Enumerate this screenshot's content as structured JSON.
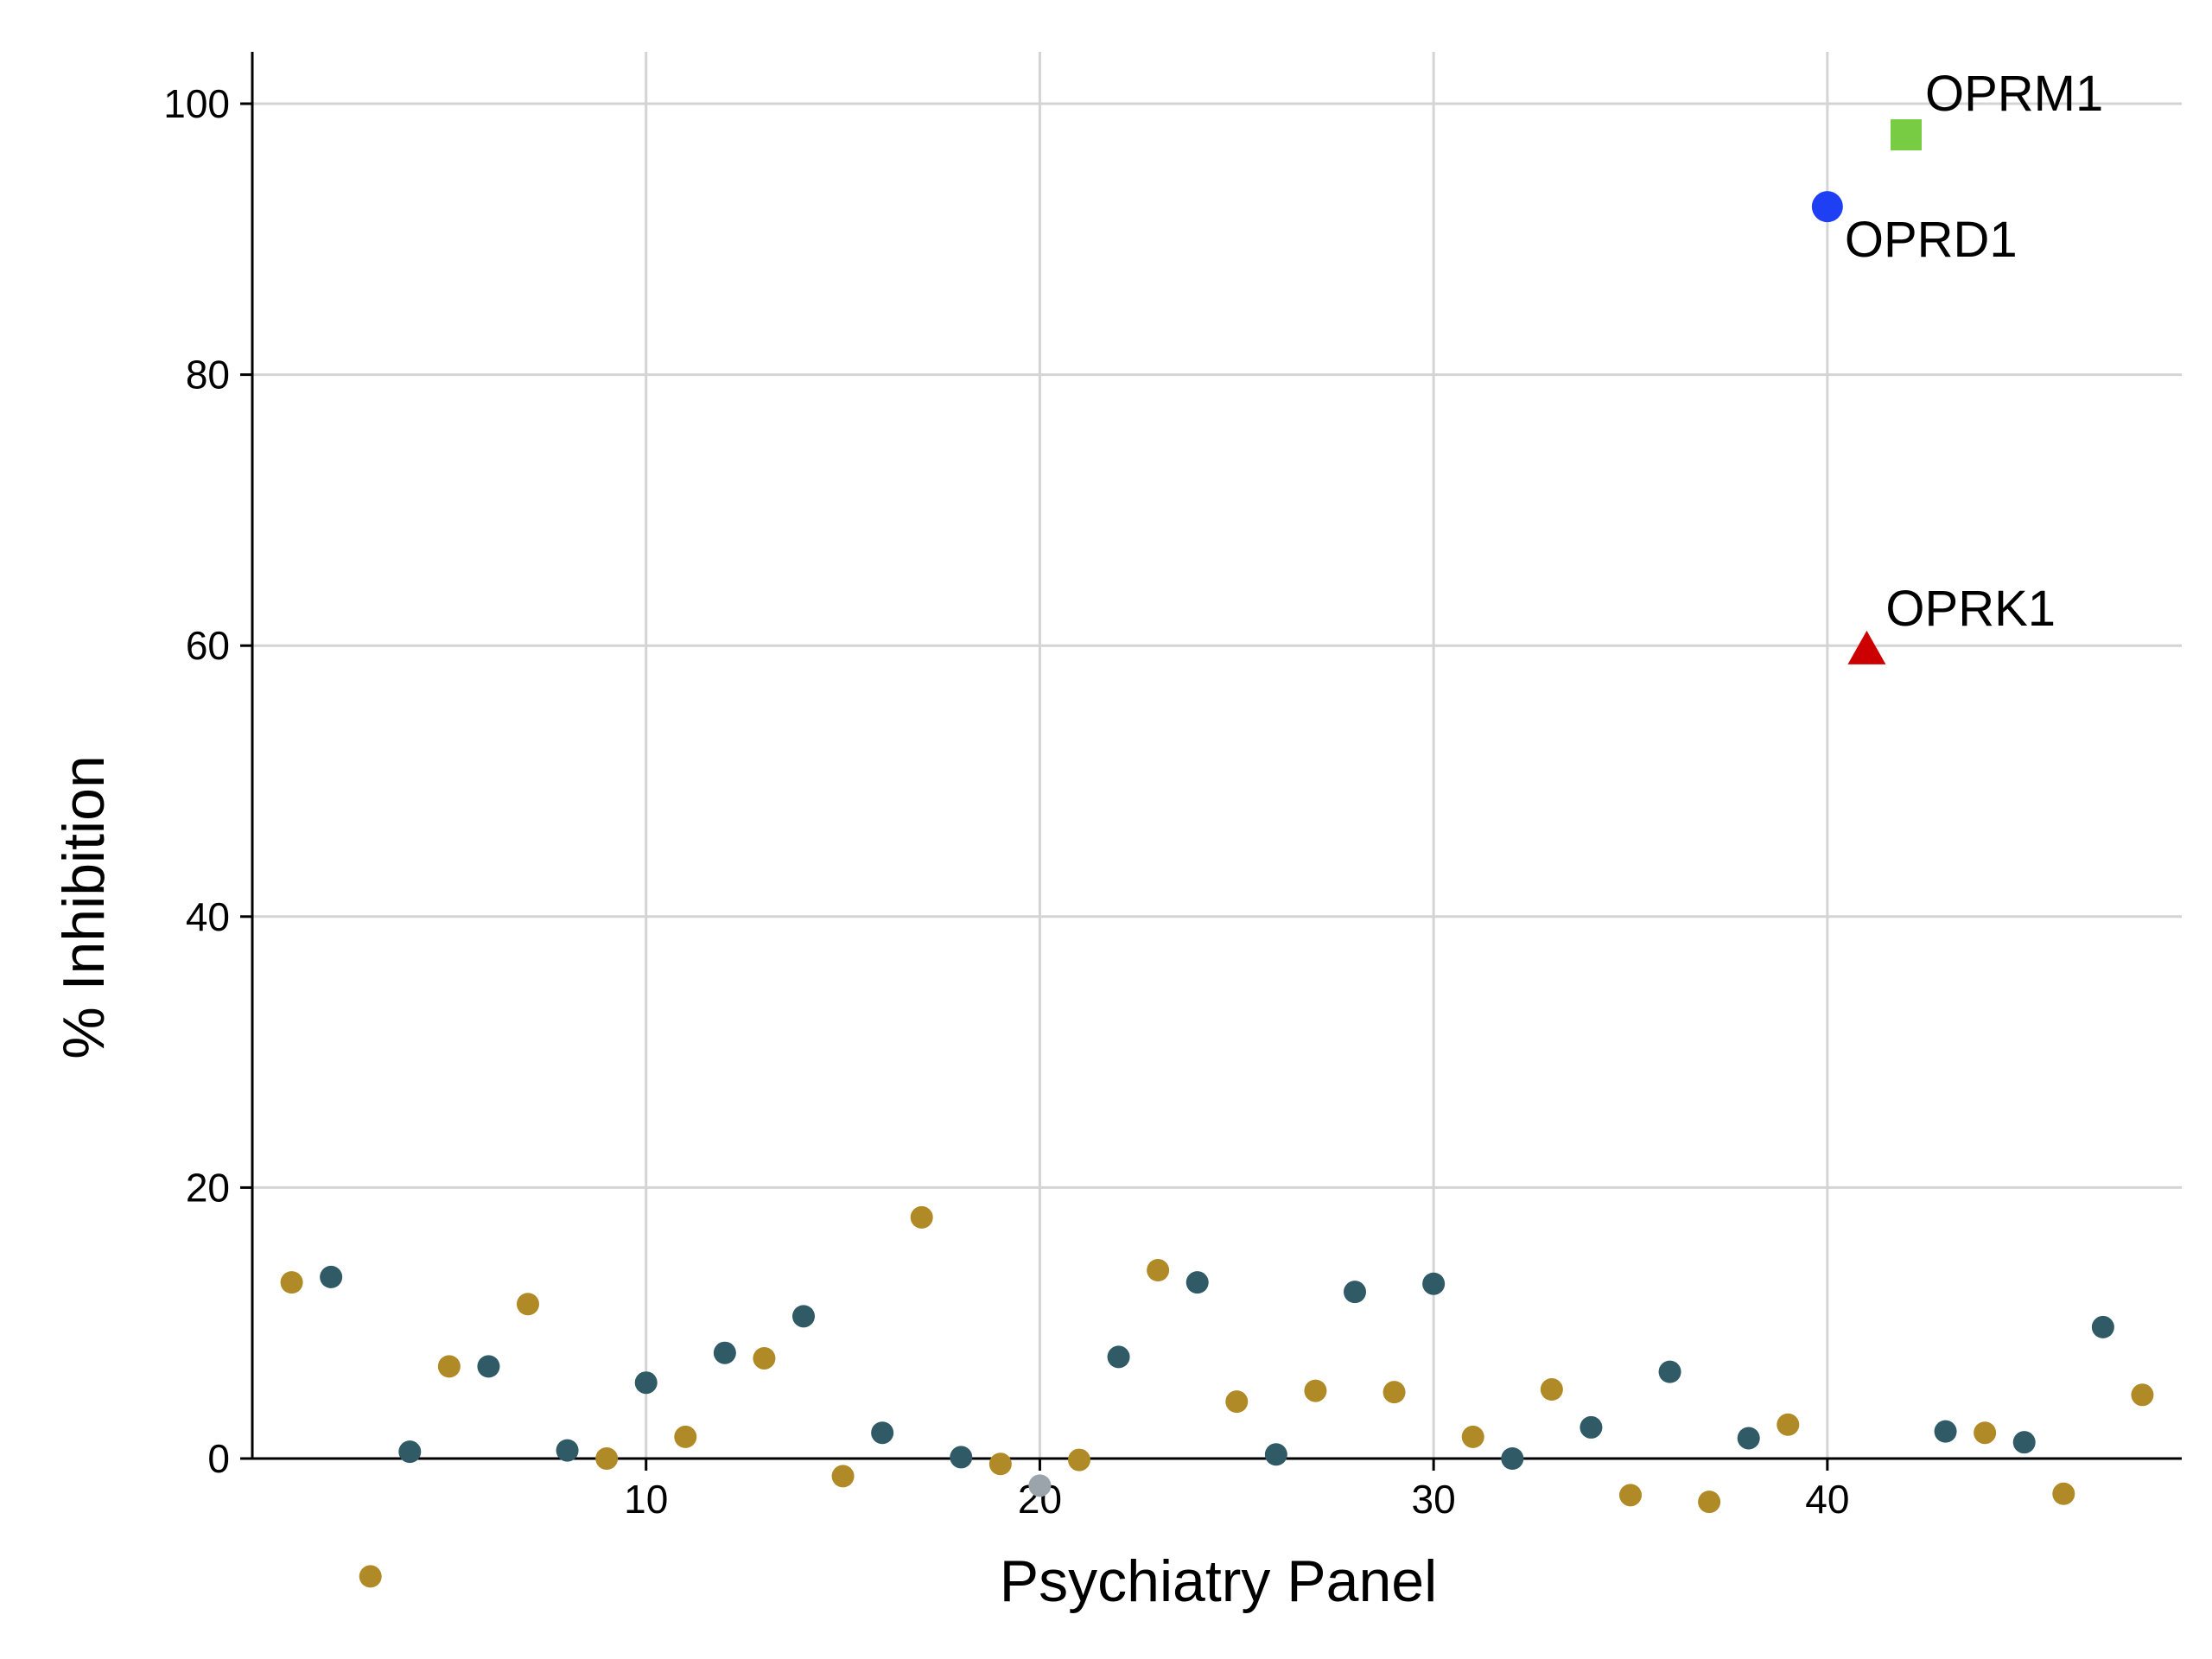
{
  "chart_data": {
    "type": "scatter",
    "title": "",
    "xlabel": "Psychiatry Panel",
    "ylabel": "% Inhibition",
    "xlim": [
      0,
      49
    ],
    "ylim": [
      -10,
      104
    ],
    "xticks": [
      10,
      20,
      30,
      40
    ],
    "yticks": [
      0,
      20,
      40,
      60,
      80,
      100
    ],
    "grid": true,
    "colors": {
      "gold": "#b08a26",
      "teal": "#2f5a66",
      "grey": "#9aa4aa"
    },
    "series": [
      {
        "color": "#b08a26",
        "points": [
          [
            1,
            13.0
          ],
          [
            3,
            -8.7
          ],
          [
            5,
            6.8
          ],
          [
            7,
            11.4
          ],
          [
            9,
            0.0
          ],
          [
            11,
            1.6
          ],
          [
            13,
            7.4
          ],
          [
            15,
            -1.3
          ],
          [
            17,
            17.8
          ],
          [
            19,
            -0.4
          ],
          [
            21,
            -0.1
          ],
          [
            23,
            13.9
          ],
          [
            25,
            4.2
          ],
          [
            27,
            5.0
          ],
          [
            29,
            4.9
          ],
          [
            31,
            1.6
          ],
          [
            33,
            5.1
          ],
          [
            35,
            -2.7
          ],
          [
            37,
            -3.2
          ],
          [
            39,
            2.5
          ],
          [
            44,
            1.9
          ],
          [
            46,
            -2.6
          ],
          [
            48,
            4.7
          ]
        ]
      },
      {
        "color": "#2f5a66",
        "points": [
          [
            2,
            13.4
          ],
          [
            4,
            0.5
          ],
          [
            6,
            6.8
          ],
          [
            8,
            0.6
          ],
          [
            10,
            5.6
          ],
          [
            12,
            7.8
          ],
          [
            14,
            10.5
          ],
          [
            16,
            1.9
          ],
          [
            18,
            0.1
          ],
          [
            22,
            7.5
          ],
          [
            24,
            13.0
          ],
          [
            26,
            0.3
          ],
          [
            28,
            12.3
          ],
          [
            30,
            12.9
          ],
          [
            32,
            0.0
          ],
          [
            34,
            2.3
          ],
          [
            36,
            6.4
          ],
          [
            38,
            1.5
          ],
          [
            43,
            2.0
          ],
          [
            45,
            1.2
          ],
          [
            47,
            9.7
          ]
        ]
      },
      {
        "color": "#9aa4aa",
        "points": [
          [
            20,
            -2.0
          ]
        ]
      }
    ],
    "highlighted": [
      {
        "label": "OPRD1",
        "x": 40,
        "y": 92.4,
        "color": "#1f3ff5",
        "shape": "circle",
        "label_pos": "below-right"
      },
      {
        "label": "OPRK1",
        "x": 41,
        "y": 59.7,
        "color": "#cc0000",
        "shape": "triangle",
        "label_pos": "above-right"
      },
      {
        "label": "OPRM1",
        "x": 42,
        "y": 97.7,
        "color": "#77cc44",
        "shape": "square",
        "label_pos": "above-right"
      }
    ]
  }
}
